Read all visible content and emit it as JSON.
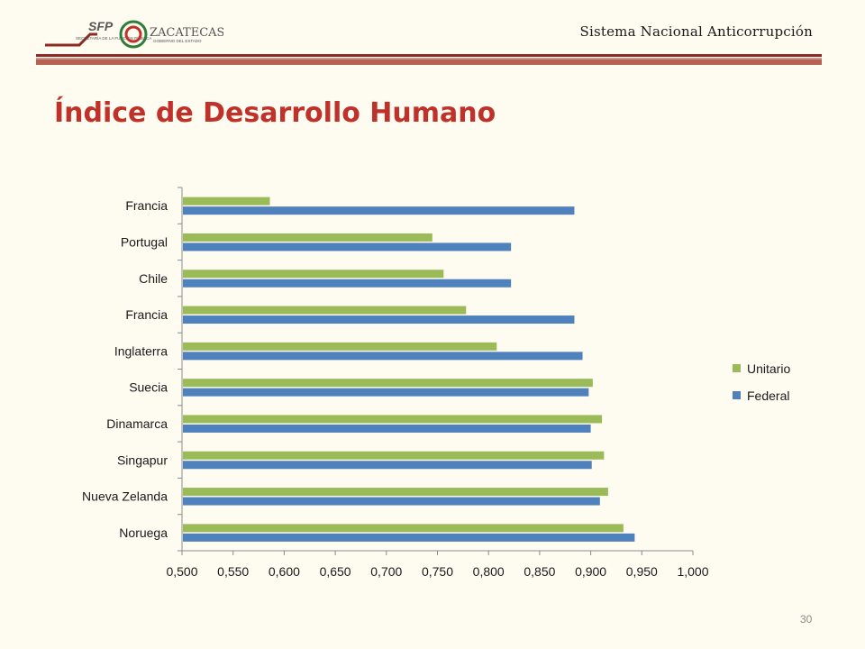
{
  "header": {
    "org_right": "Sistema Nacional Anticorrupción",
    "logo_left": "SFP",
    "logo_left_sub": "SECRETARÍA DE LA FUNCIÓN PÚBLICA",
    "logo_right": "ZACATECAS",
    "logo_right_sub": "GOBIERNO DEL ESTADO"
  },
  "slide": {
    "title": "Índice de Desarrollo Humano",
    "page_number": "30"
  },
  "colors": {
    "unitario": "#9bbb59",
    "federal": "#4f81bd",
    "title": "#c0312a",
    "rule": "#8b2b23"
  },
  "chart_data": {
    "type": "bar",
    "orientation": "horizontal",
    "categories": [
      "Noruega",
      "Nueva Zelanda",
      "Singapur",
      "Dinamarca",
      "Suecia",
      "Inglaterra",
      "Francia",
      "Chile",
      "Portugal",
      "Francia"
    ],
    "series": [
      {
        "name": "Federal",
        "values": [
          0.943,
          0.909,
          0.901,
          0.9,
          0.898,
          0.892,
          0.884,
          0.822,
          0.822,
          0.884
        ]
      },
      {
        "name": "Unitario",
        "values": [
          0.932,
          0.917,
          0.913,
          0.911,
          0.902,
          0.808,
          0.778,
          0.756,
          0.745,
          0.586
        ]
      }
    ],
    "xlim": [
      0.5,
      1.0
    ],
    "xticks": [
      "0,500",
      "0,550",
      "0,600",
      "0,650",
      "0,700",
      "0,750",
      "0,800",
      "0,850",
      "0,900",
      "0,950",
      "1,000"
    ],
    "legend": {
      "placement": "right",
      "order": [
        "Unitario",
        "Federal"
      ]
    },
    "grid": false
  }
}
